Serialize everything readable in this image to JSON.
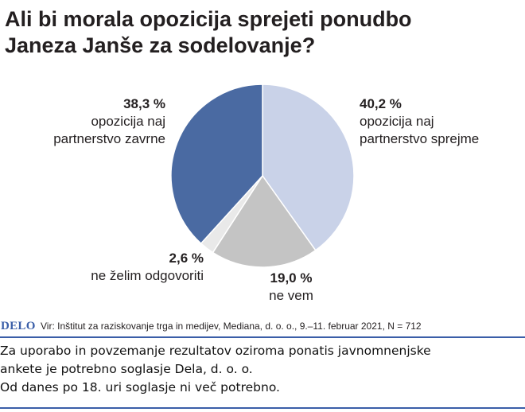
{
  "title_lines": [
    "Ali bi morala opozicija sprejeti ponudbo",
    "Janeza Janše za sodelovanje?"
  ],
  "chart_data": {
    "type": "pie",
    "title": "Ali bi morala opozicija sprejeti ponudbo Janeza Janše za sodelovanje?",
    "slices": [
      {
        "value": 40.2,
        "pct_label": "40,2 %",
        "label_lines": [
          "opozicija naj",
          "partnerstvo sprejme"
        ],
        "color": "#c9d2e8"
      },
      {
        "value": 19.0,
        "pct_label": "19,0 %",
        "label_lines": [
          "ne vem"
        ],
        "color": "#c4c4c4"
      },
      {
        "value": 2.6,
        "pct_label": "2,6 %",
        "label_lines": [
          "ne želim odgovoriti"
        ],
        "color": "#e9e9e9"
      },
      {
        "value": 38.3,
        "pct_label": "38,3 %",
        "label_lines": [
          "opozicija naj",
          "partnerstvo zavrne"
        ],
        "color": "#4a6aa2"
      }
    ]
  },
  "source": {
    "brand": "DELO",
    "text": "Vir: Inštitut za raziskovanje trga in medijev, Mediana, d. o. o., 9.–11. februar 2021, N = 712"
  },
  "notice_lines": [
    "Za uporabo in povzemanje rezultatov oziroma ponatis javnomnenjske",
    "ankete je potrebno soglasje Dela, d. o. o.",
    "Od danes po 18. uri soglasje ni več potrebno."
  ],
  "colors": {
    "accent": "#3a5ea8"
  }
}
